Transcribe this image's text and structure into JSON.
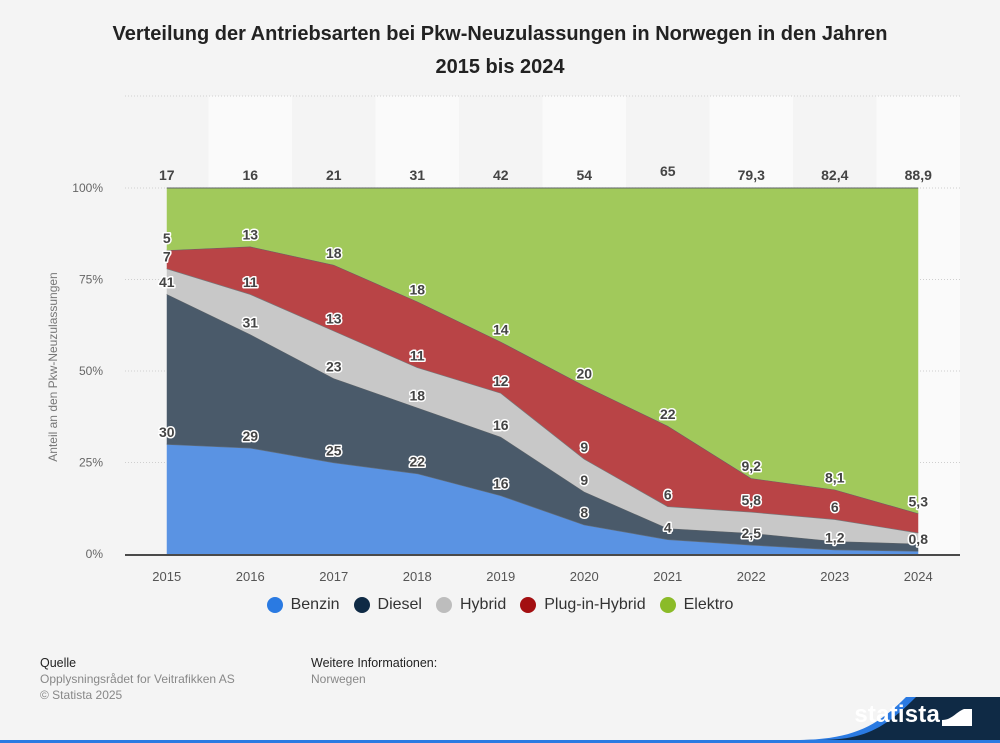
{
  "title": "Verteilung der Antriebsarten bei Pkw-Neuzulassungen in Norwegen in den Jahren 2015 bis 2024",
  "title_lines": [
    "Verteilung der Antriebsarten bei Pkw-Neuzulassungen in Norwegen in den Jahren",
    "2015 bis 2024"
  ],
  "chart_data": {
    "type": "area",
    "stacked": true,
    "normalized_percent": true,
    "title": "Verteilung der Antriebsarten bei Pkw-Neuzulassungen in Norwegen in den Jahren 2015 bis 2024",
    "xlabel": "",
    "ylabel": "Anteil an den Pkw-Neuzulassungen",
    "ylim": [
      0,
      100
    ],
    "yticks": [
      "0%",
      "25%",
      "50%",
      "75%",
      "100%"
    ],
    "grid": true,
    "legend_position": "bottom",
    "categories": [
      "2015",
      "2016",
      "2017",
      "2018",
      "2019",
      "2020",
      "2021",
      "2022",
      "2023",
      "2024"
    ],
    "series": [
      {
        "name": "Benzin",
        "color": "#5a93e3",
        "legend_color": "#2a7ae2",
        "values": [
          30,
          29,
          25,
          22,
          16,
          8,
          4,
          2.5,
          1.2,
          0.8
        ],
        "labels": [
          "30",
          "29",
          "25",
          "22",
          "16",
          "8",
          "4",
          "2,5",
          "1,2",
          "0,8"
        ]
      },
      {
        "name": "Diesel",
        "color": "#4a5a6a",
        "legend_color": "#0f2a45",
        "values": [
          41,
          31,
          23,
          18,
          16,
          9,
          3,
          3.2,
          2.3,
          2.0
        ],
        "labels": [
          "41",
          "31",
          "23",
          "18",
          "16",
          "9",
          "",
          "",
          "",
          ""
        ]
      },
      {
        "name": "Hybrid",
        "color": "#c8c8c8",
        "legend_color": "#bdbdbd",
        "values": [
          7,
          11,
          13,
          11,
          12,
          9,
          6,
          5.8,
          6,
          3.0
        ],
        "labels": [
          "7",
          "11",
          "13",
          "11",
          "12",
          "9",
          "6",
          "5,8",
          "6",
          ""
        ]
      },
      {
        "name": "Plug-in-Hybrid",
        "color": "#b94446",
        "legend_color": "#a30f11",
        "values": [
          5,
          13,
          18,
          18,
          14,
          20,
          22,
          9.2,
          8.1,
          5.3
        ],
        "labels": [
          "5",
          "13",
          "18",
          "18",
          "14",
          "20",
          "22",
          "9,2",
          "8,1",
          "5,3"
        ]
      },
      {
        "name": "Elektro",
        "color": "#a1c95b",
        "legend_color": "#8bbb28",
        "values": [
          17,
          16,
          21,
          31,
          42,
          54,
          65,
          79.3,
          82.4,
          88.9
        ],
        "labels": [
          "17",
          "16",
          "21",
          "31",
          "42",
          "54",
          "65",
          "79,3",
          "82,4",
          "88,9"
        ]
      }
    ]
  },
  "footer": {
    "source_heading": "Quelle",
    "source": "Opplysningsrådet for Veitrafikken AS",
    "copyright": "© Statista 2025",
    "info_heading": "Weitere Informationen:",
    "info": "Norwegen"
  },
  "brand": {
    "name": "statista",
    "color": "#0f2a45",
    "accent": "#2a7ae2"
  }
}
